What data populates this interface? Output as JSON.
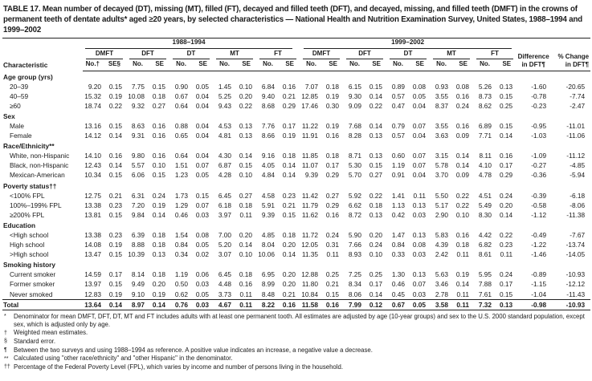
{
  "title": "TABLE 17. Mean number of decayed (DT), missing (MT), filled (FT), decayed and filled teeth (DFT), and decayed, missing, and filled teeth (DMFT) in the crowns of permanent teeth of dentate adults* aged ≥20 years, by selected characteristics — National Health and Nutrition Examination Survey, United States, 1988–1994 and 1999–2002",
  "table": {
    "characteristic_header": "Characteristic",
    "period_headers": [
      "1988–1994",
      "1999–2002"
    ],
    "measure_headers": [
      "DMFT",
      "DFT",
      "DT",
      "MT",
      "FT"
    ],
    "first_subcols": [
      "No.†",
      "SE§"
    ],
    "subcols": [
      "No.",
      "SE"
    ],
    "difference_header": [
      "Difference",
      "in DFT¶"
    ],
    "pct_change_header": [
      "% Change",
      "in DFT¶"
    ],
    "sections": [
      {
        "label": "Age group (yrs)",
        "rows": [
          {
            "label": "20–39",
            "values": [
              "9.20",
              "0.15",
              "7.75",
              "0.15",
              "0.90",
              "0.05",
              "1.45",
              "0.10",
              "6.84",
              "0.16",
              "7.07",
              "0.18",
              "6.15",
              "0.15",
              "0.89",
              "0.08",
              "0.93",
              "0.08",
              "5.26",
              "0.13",
              "-1.60",
              "-20.65"
            ]
          },
          {
            "label": "40–59",
            "values": [
              "15.32",
              "0.19",
              "10.08",
              "0.18",
              "0.67",
              "0.04",
              "5.25",
              "0.20",
              "9.40",
              "0.21",
              "12.85",
              "0.19",
              "9.30",
              "0.14",
              "0.57",
              "0.05",
              "3.55",
              "0.16",
              "8.73",
              "0.15",
              "-0.78",
              "-7.74"
            ]
          },
          {
            "label": "≥60",
            "values": [
              "18.74",
              "0.22",
              "9.32",
              "0.27",
              "0.64",
              "0.04",
              "9.43",
              "0.22",
              "8.68",
              "0.29",
              "17.46",
              "0.30",
              "9.09",
              "0.22",
              "0.47",
              "0.04",
              "8.37",
              "0.24",
              "8.62",
              "0.25",
              "-0.23",
              "-2.47"
            ]
          }
        ]
      },
      {
        "label": "Sex",
        "rows": [
          {
            "label": "Male",
            "values": [
              "13.16",
              "0.15",
              "8.63",
              "0.16",
              "0.88",
              "0.04",
              "4.53",
              "0.13",
              "7.76",
              "0.17",
              "11.22",
              "0.19",
              "7.68",
              "0.14",
              "0.79",
              "0.07",
              "3.55",
              "0.16",
              "6.89",
              "0.15",
              "-0.95",
              "-11.01"
            ]
          },
          {
            "label": "Female",
            "values": [
              "14.12",
              "0.14",
              "9.31",
              "0.16",
              "0.65",
              "0.04",
              "4.81",
              "0.13",
              "8.66",
              "0.19",
              "11.91",
              "0.16",
              "8.28",
              "0.13",
              "0.57",
              "0.04",
              "3.63",
              "0.09",
              "7.71",
              "0.14",
              "-1.03",
              "-11.06"
            ]
          }
        ]
      },
      {
        "label": "Race/Ethnicity**",
        "rows": [
          {
            "label": "White, non-Hispanic",
            "values": [
              "14.10",
              "0.16",
              "9.80",
              "0.16",
              "0.64",
              "0.04",
              "4.30",
              "0.14",
              "9.16",
              "0.18",
              "11.85",
              "0.18",
              "8.71",
              "0.13",
              "0.60",
              "0.07",
              "3.15",
              "0.14",
              "8.11",
              "0.16",
              "-1.09",
              "-11.12"
            ]
          },
          {
            "label": "Black, non-Hispanic",
            "values": [
              "12.43",
              "0.14",
              "5.57",
              "0.10",
              "1.51",
              "0.07",
              "6.87",
              "0.15",
              "4.05",
              "0.14",
              "11.07",
              "0.17",
              "5.30",
              "0.15",
              "1.19",
              "0.07",
              "5.78",
              "0.14",
              "4.10",
              "0.17",
              "-0.27",
              "-4.85"
            ]
          },
          {
            "label": "Mexican-American",
            "values": [
              "10.34",
              "0.15",
              "6.06",
              "0.15",
              "1.23",
              "0.05",
              "4.28",
              "0.10",
              "4.84",
              "0.14",
              "9.39",
              "0.29",
              "5.70",
              "0.27",
              "0.91",
              "0.04",
              "3.70",
              "0.09",
              "4.78",
              "0.29",
              "-0.36",
              "-5.94"
            ]
          }
        ]
      },
      {
        "label": "Poverty status††",
        "rows": [
          {
            "label": "<100% FPL",
            "values": [
              "12.75",
              "0.21",
              "6.31",
              "0.24",
              "1.73",
              "0.15",
              "6.45",
              "0.27",
              "4.58",
              "0.23",
              "11.42",
              "0.27",
              "5.92",
              "0.22",
              "1.41",
              "0.11",
              "5.50",
              "0.22",
              "4.51",
              "0.24",
              "-0.39",
              "-6.18"
            ]
          },
          {
            "label": "100%–199% FPL",
            "values": [
              "13.38",
              "0.23",
              "7.20",
              "0.19",
              "1.29",
              "0.07",
              "6.18",
              "0.18",
              "5.91",
              "0.21",
              "11.79",
              "0.29",
              "6.62",
              "0.18",
              "1.13",
              "0.13",
              "5.17",
              "0.22",
              "5.49",
              "0.20",
              "-0.58",
              "-8.06"
            ]
          },
          {
            "label": "≥200% FPL",
            "values": [
              "13.81",
              "0.15",
              "9.84",
              "0.14",
              "0.46",
              "0.03",
              "3.97",
              "0.11",
              "9.39",
              "0.15",
              "11.62",
              "0.16",
              "8.72",
              "0.13",
              "0.42",
              "0.03",
              "2.90",
              "0.10",
              "8.30",
              "0.14",
              "-1.12",
              "-11.38"
            ]
          }
        ]
      },
      {
        "label": "Education",
        "rows": [
          {
            "label": "<High school",
            "values": [
              "13.38",
              "0.23",
              "6.39",
              "0.18",
              "1.54",
              "0.08",
              "7.00",
              "0.20",
              "4.85",
              "0.18",
              "11.72",
              "0.24",
              "5.90",
              "0.20",
              "1.47",
              "0.13",
              "5.83",
              "0.16",
              "4.42",
              "0.22",
              "-0.49",
              "-7.67"
            ]
          },
          {
            "label": "High school",
            "values": [
              "14.08",
              "0.19",
              "8.88",
              "0.18",
              "0.84",
              "0.05",
              "5.20",
              "0.14",
              "8.04",
              "0.20",
              "12.05",
              "0.31",
              "7.66",
              "0.24",
              "0.84",
              "0.08",
              "4.39",
              "0.18",
              "6.82",
              "0.23",
              "-1.22",
              "-13.74"
            ]
          },
          {
            "label": ">High school",
            "values": [
              "13.47",
              "0.15",
              "10.39",
              "0.13",
              "0.34",
              "0.02",
              "3.07",
              "0.10",
              "10.06",
              "0.14",
              "11.35",
              "0.11",
              "8.93",
              "0.10",
              "0.33",
              "0.03",
              "2.42",
              "0.11",
              "8.61",
              "0.11",
              "-1.46",
              "-14.05"
            ]
          }
        ]
      },
      {
        "label": "Smoking history",
        "rows": [
          {
            "label": "Current smoker",
            "values": [
              "14.59",
              "0.17",
              "8.14",
              "0.18",
              "1.19",
              "0.06",
              "6.45",
              "0.18",
              "6.95",
              "0.20",
              "12.88",
              "0.25",
              "7.25",
              "0.25",
              "1.30",
              "0.13",
              "5.63",
              "0.19",
              "5.95",
              "0.24",
              "-0.89",
              "-10.93"
            ]
          },
          {
            "label": "Former smoker",
            "values": [
              "13.97",
              "0.15",
              "9.49",
              "0.20",
              "0.50",
              "0.03",
              "4.48",
              "0.16",
              "8.99",
              "0.20",
              "11.80",
              "0.21",
              "8.34",
              "0.17",
              "0.46",
              "0.07",
              "3.46",
              "0.14",
              "7.88",
              "0.17",
              "-1.15",
              "-12.12"
            ]
          },
          {
            "label": "Never smoked",
            "values": [
              "12.83",
              "0.19",
              "9.10",
              "0.19",
              "0.62",
              "0.05",
              "3.73",
              "0.11",
              "8.48",
              "0.21",
              "10.84",
              "0.15",
              "8.06",
              "0.14",
              "0.45",
              "0.03",
              "2.78",
              "0.11",
              "7.61",
              "0.15",
              "-1.04",
              "-11.43"
            ]
          }
        ]
      }
    ],
    "total_row": {
      "label": "Total",
      "values": [
        "13.64",
        "0.14",
        "8.97",
        "0.14",
        "0.76",
        "0.03",
        "4.67",
        "0.11",
        "8.22",
        "0.16",
        "11.58",
        "0.16",
        "7.99",
        "0.12",
        "0.67",
        "0.05",
        "3.58",
        "0.11",
        "7.32",
        "0.13",
        "-0.98",
        "-10.93"
      ]
    }
  },
  "footnotes": [
    {
      "marker": "*",
      "text": "Denominator for mean DMFT, DFT, DT, MT and FT includes adults with at least one permanent tooth. All estimates are adjusted by age (10-year groups) and sex to the U.S. 2000 standard population, except sex, which is adjusted only by age."
    },
    {
      "marker": "†",
      "text": "Weighted mean estimates."
    },
    {
      "marker": "§",
      "text": "Standard error."
    },
    {
      "marker": "¶",
      "text": "Between the two surveys and using 1988–1994 as reference. A positive value indicates an increase, a negative value a decrease."
    },
    {
      "marker": "**",
      "text": "Calculated using \"other race/ethnicity\" and \"other Hispanic\" in the denominator."
    },
    {
      "marker": "††",
      "text": "Percentage of the Federal Poverty Level (FPL), which varies by income and number of persons living in the household."
    }
  ]
}
